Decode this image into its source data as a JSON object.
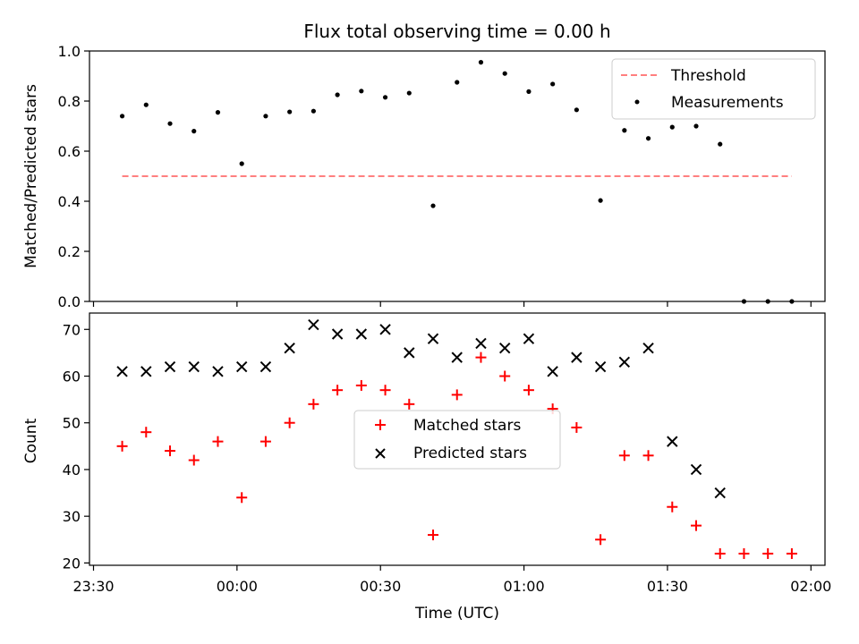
{
  "chart_data": [
    {
      "type": "line",
      "title": "Flux total observing time = 0.00 h",
      "xlabel": "",
      "ylabel": "Matched/Predicted stars",
      "ylim": [
        0,
        1.0
      ],
      "yticks": [
        "0.0",
        "0.2",
        "0.4",
        "0.6",
        "0.8",
        "1.0"
      ],
      "legend_position": "top-right",
      "series": [
        {
          "name": "Threshold",
          "style": "dashed-line",
          "color": "#ff7f7f",
          "points": [
            [
              "23:36",
              0.5
            ],
            [
              "01:56",
              0.5
            ]
          ]
        },
        {
          "name": "Measurements",
          "style": "dot",
          "color": "#000000",
          "points": [
            [
              "23:36",
              0.74
            ],
            [
              "23:41",
              0.785
            ],
            [
              "23:46",
              0.71
            ],
            [
              "23:51",
              0.68
            ],
            [
              "23:56",
              0.755
            ],
            [
              "00:01",
              0.55
            ],
            [
              "00:06",
              0.74
            ],
            [
              "00:11",
              0.757
            ],
            [
              "00:16",
              0.76
            ],
            [
              "00:21",
              0.825
            ],
            [
              "00:26",
              0.84
            ],
            [
              "00:31",
              0.815
            ],
            [
              "00:36",
              0.832
            ],
            [
              "00:41",
              0.382
            ],
            [
              "00:46",
              0.875
            ],
            [
              "00:51",
              0.955
            ],
            [
              "00:56",
              0.91
            ],
            [
              "01:01",
              0.838
            ],
            [
              "01:06",
              0.868
            ],
            [
              "01:11",
              0.765
            ],
            [
              "01:16",
              0.403
            ],
            [
              "01:21",
              0.683
            ],
            [
              "01:26",
              0.651
            ],
            [
              "01:31",
              0.696
            ],
            [
              "01:36",
              0.7
            ],
            [
              "01:41",
              0.628
            ],
            [
              "01:46",
              0.0
            ],
            [
              "01:51",
              0.0
            ],
            [
              "01:56",
              0.0
            ]
          ]
        }
      ]
    },
    {
      "type": "scatter",
      "title": "",
      "xlabel": "Time (UTC)",
      "ylabel": "Count",
      "ylim": [
        19.5,
        73.5
      ],
      "yticks": [
        "20",
        "30",
        "40",
        "50",
        "60",
        "70"
      ],
      "xticks": [
        "23:30",
        "00:00",
        "00:30",
        "01:00",
        "01:30",
        "02:00"
      ],
      "xlim": [
        "23:30",
        "02:03"
      ],
      "legend_position": "center",
      "series": [
        {
          "name": "Matched stars",
          "marker": "+",
          "color": "#ff0000",
          "points": [
            [
              "23:36",
              45
            ],
            [
              "23:41",
              48
            ],
            [
              "23:46",
              44
            ],
            [
              "23:51",
              42
            ],
            [
              "23:56",
              46
            ],
            [
              "00:01",
              34
            ],
            [
              "00:06",
              46
            ],
            [
              "00:11",
              50
            ],
            [
              "00:16",
              54
            ],
            [
              "00:21",
              57
            ],
            [
              "00:26",
              58
            ],
            [
              "00:31",
              57
            ],
            [
              "00:36",
              54
            ],
            [
              "00:41",
              26
            ],
            [
              "00:46",
              56
            ],
            [
              "00:51",
              64
            ],
            [
              "00:56",
              60
            ],
            [
              "01:01",
              57
            ],
            [
              "01:06",
              53
            ],
            [
              "01:11",
              49
            ],
            [
              "01:16",
              25
            ],
            [
              "01:21",
              43
            ],
            [
              "01:26",
              43
            ],
            [
              "01:31",
              32
            ],
            [
              "01:36",
              28
            ],
            [
              "01:41",
              22
            ],
            [
              "01:46",
              22
            ],
            [
              "01:51",
              22
            ],
            [
              "01:56",
              22
            ]
          ]
        },
        {
          "name": "Predicted stars",
          "marker": "x",
          "color": "#000000",
          "points": [
            [
              "23:36",
              61
            ],
            [
              "23:41",
              61
            ],
            [
              "23:46",
              62
            ],
            [
              "23:51",
              62
            ],
            [
              "23:56",
              61
            ],
            [
              "00:01",
              62
            ],
            [
              "00:06",
              62
            ],
            [
              "00:11",
              66
            ],
            [
              "00:16",
              71
            ],
            [
              "00:21",
              69
            ],
            [
              "00:26",
              69
            ],
            [
              "00:31",
              70
            ],
            [
              "00:36",
              65
            ],
            [
              "00:41",
              68
            ],
            [
              "00:46",
              64
            ],
            [
              "00:51",
              67
            ],
            [
              "00:56",
              66
            ],
            [
              "01:01",
              68
            ],
            [
              "01:06",
              61
            ],
            [
              "01:11",
              64
            ],
            [
              "01:16",
              62
            ],
            [
              "01:21",
              63
            ],
            [
              "01:26",
              66
            ],
            [
              "01:31",
              46
            ],
            [
              "01:36",
              40
            ],
            [
              "01:41",
              35
            ]
          ]
        }
      ]
    }
  ]
}
